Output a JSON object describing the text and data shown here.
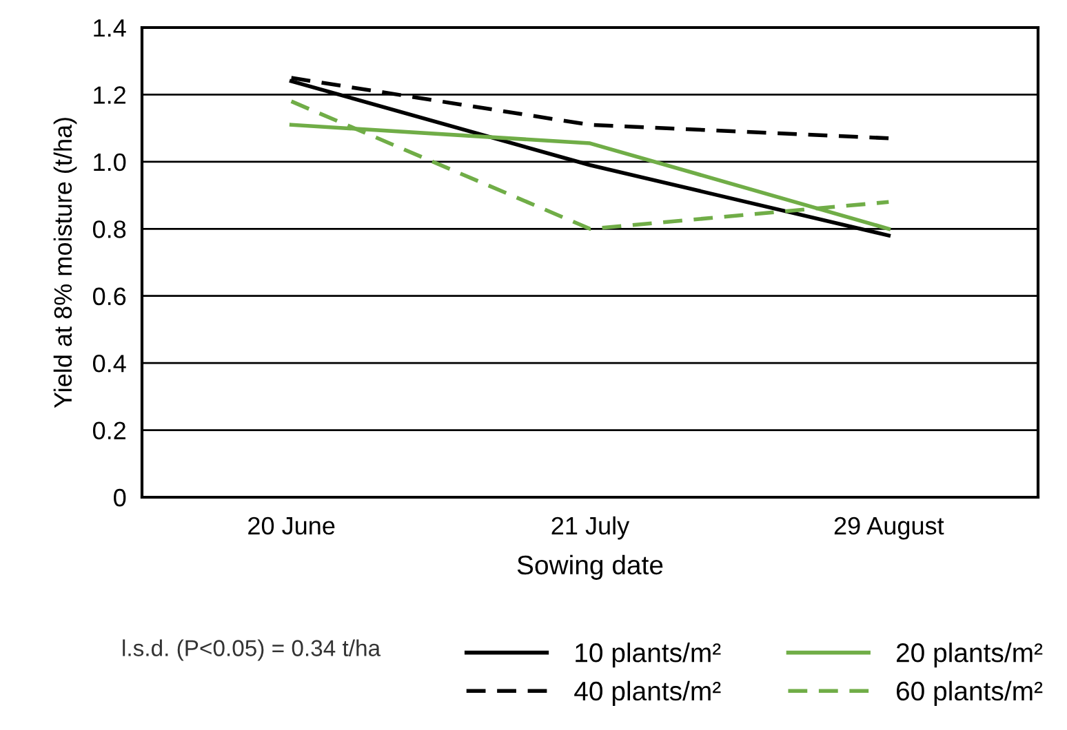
{
  "chart_data": {
    "type": "line",
    "xlabel": "Sowing date",
    "ylabel": "Yield at 8% moisture (t/ha)",
    "categories": [
      "20 June",
      "21 July",
      "29 August"
    ],
    "series": [
      {
        "name": "10 plants/m²",
        "color": "#000000",
        "line_style": "solid",
        "values": [
          1.24,
          0.99,
          0.78
        ]
      },
      {
        "name": "20 plants/m²",
        "color": "#70ad47",
        "line_style": "solid",
        "values": [
          1.11,
          1.055,
          0.8
        ]
      },
      {
        "name": "40 plants/m²",
        "color": "#000000",
        "line_style": "dashed",
        "values": [
          1.25,
          1.11,
          1.07
        ]
      },
      {
        "name": "60 plants/m²",
        "color": "#70ad47",
        "line_style": "dashed",
        "values": [
          1.18,
          0.8,
          0.88
        ]
      }
    ],
    "ylim": [
      0,
      1.4
    ],
    "yticks": [
      0,
      0.2,
      0.4,
      0.6,
      0.8,
      {
        "value": 1,
        "label": "1.0"
      },
      1.2,
      1.4
    ],
    "grid": "y",
    "legend": "bottom",
    "marker": "none",
    "annotations": [
      "l.s.d. (P<0.05) = 0.34 t/ha"
    ]
  }
}
